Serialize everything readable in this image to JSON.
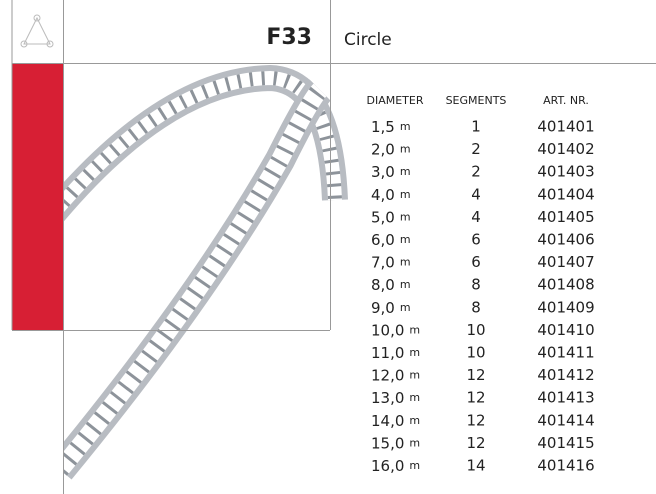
{
  "header": {
    "code": "F33",
    "name": "Circle"
  },
  "table": {
    "columns": [
      "DIAMETER",
      "SEGMENTS",
      "ART. NR."
    ],
    "rows": [
      [
        "1,5",
        "m",
        "1",
        "401401"
      ],
      [
        "2,0",
        "m",
        "2",
        "401402"
      ],
      [
        "3,0",
        "m",
        "2",
        "401403"
      ],
      [
        "4,0",
        "m",
        "4",
        "401404"
      ],
      [
        "5,0",
        "m",
        "4",
        "401405"
      ],
      [
        "6,0",
        "m",
        "6",
        "401406"
      ],
      [
        "7,0",
        "m",
        "6",
        "401407"
      ],
      [
        "8,0",
        "m",
        "8",
        "401408"
      ],
      [
        "9,0",
        "m",
        "8",
        "401409"
      ],
      [
        "10,0",
        "m",
        "10",
        "401410"
      ],
      [
        "11,0",
        "m",
        "10",
        "401411"
      ],
      [
        "12,0",
        "m",
        "12",
        "401412"
      ],
      [
        "13,0",
        "m",
        "12",
        "401413"
      ],
      [
        "14,0",
        "m",
        "12",
        "401414"
      ],
      [
        "15,0",
        "m",
        "12",
        "401415"
      ],
      [
        "16,0",
        "m",
        "14",
        "401416"
      ]
    ]
  }
}
